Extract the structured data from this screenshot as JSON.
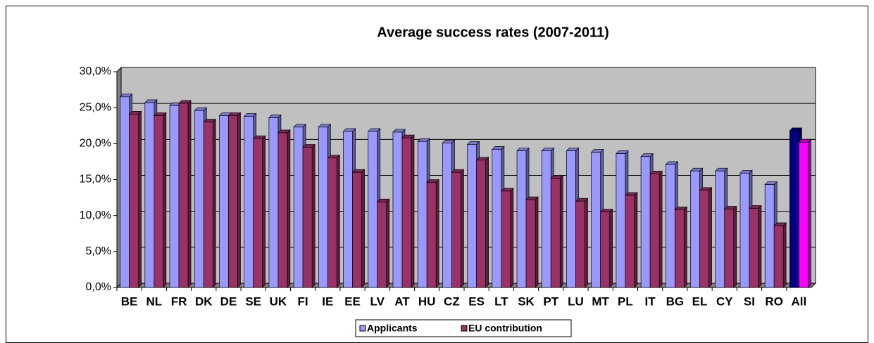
{
  "chart_data": {
    "type": "bar",
    "title": "Average success rates (2007-2011)",
    "categories": [
      "BE",
      "NL",
      "FR",
      "DK",
      "DE",
      "SE",
      "UK",
      "FI",
      "IE",
      "EE",
      "LV",
      "AT",
      "HU",
      "CZ",
      "ES",
      "LT",
      "SK",
      "PT",
      "LU",
      "MT",
      "PL",
      "IT",
      "BG",
      "EL",
      "CY",
      "SI",
      "RO",
      "All"
    ],
    "series": [
      {
        "name": "Applicants",
        "color": "#9999ff",
        "colors": [
          "#9999ff",
          "#9999ff",
          "#9999ff",
          "#9999ff",
          "#9999ff",
          "#9999ff",
          "#9999ff",
          "#9999ff",
          "#9999ff",
          "#9999ff",
          "#9999ff",
          "#9999ff",
          "#9999ff",
          "#9999ff",
          "#9999ff",
          "#9999ff",
          "#9999ff",
          "#9999ff",
          "#9999ff",
          "#9999ff",
          "#9999ff",
          "#9999ff",
          "#9999ff",
          "#9999ff",
          "#9999ff",
          "#9999ff",
          "#9999ff",
          "#000080"
        ],
        "values": [
          26.5,
          25.7,
          25.3,
          24.6,
          23.9,
          23.8,
          23.6,
          22.3,
          22.3,
          21.7,
          21.7,
          21.6,
          20.3,
          20.1,
          19.9,
          19.2,
          19.0,
          19.0,
          19.0,
          18.8,
          18.6,
          18.2,
          17.1,
          16.2,
          16.2,
          15.9,
          14.3,
          21.8
        ]
      },
      {
        "name": "EU contribution",
        "color": "#993366",
        "colors": [
          "#993366",
          "#993366",
          "#993366",
          "#993366",
          "#993366",
          "#993366",
          "#993366",
          "#993366",
          "#993366",
          "#993366",
          "#993366",
          "#993366",
          "#993366",
          "#993366",
          "#993366",
          "#993366",
          "#993366",
          "#993366",
          "#993366",
          "#993366",
          "#993366",
          "#993366",
          "#993366",
          "#993366",
          "#993366",
          "#993366",
          "#993366",
          "#ff00ff"
        ],
        "values": [
          24.1,
          23.9,
          25.6,
          23.0,
          23.9,
          20.7,
          21.5,
          19.5,
          18.0,
          16.0,
          11.9,
          20.8,
          14.6,
          16.0,
          17.7,
          13.4,
          12.2,
          15.2,
          12.0,
          10.5,
          12.8,
          15.8,
          10.8,
          13.5,
          10.9,
          11.0,
          8.6,
          20.2
        ]
      }
    ],
    "ylim": [
      0,
      30
    ],
    "yticks": [
      {
        "value": 0,
        "label": "0,0%"
      },
      {
        "value": 5,
        "label": "5,0%"
      },
      {
        "value": 10,
        "label": "10,0%"
      },
      {
        "value": 15,
        "label": "15,0%"
      },
      {
        "value": 20,
        "label": "20,0%"
      },
      {
        "value": 25,
        "label": "25,0%"
      },
      {
        "value": 30,
        "label": "30,0%"
      }
    ],
    "grid": true,
    "legend": "bottom"
  }
}
